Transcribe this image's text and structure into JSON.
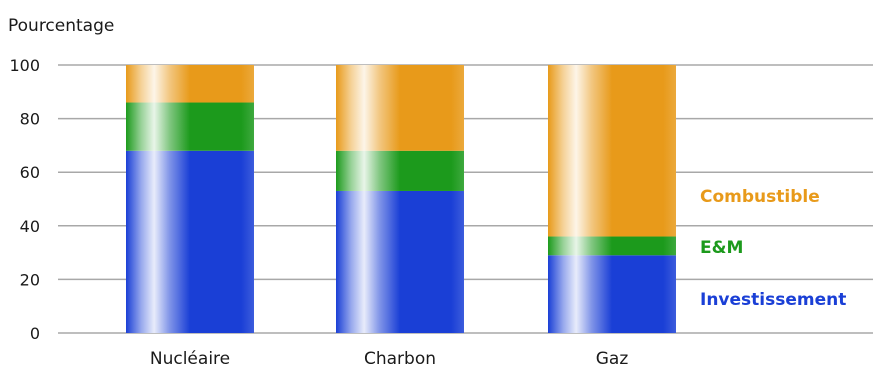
{
  "chart_data": {
    "type": "bar",
    "stacked": true,
    "title": "",
    "ylabel": "Pourcentage",
    "xlabel": "",
    "ylim": [
      0,
      100
    ],
    "yticks": [
      "0",
      "20",
      "40",
      "60",
      "80",
      "100"
    ],
    "categories": [
      "Nucléaire",
      "Charbon",
      "Gaz"
    ],
    "series": [
      {
        "name": "Investissement",
        "color": "#1a3fd6",
        "values": [
          68,
          53,
          29
        ]
      },
      {
        "name": "E&M",
        "color": "#1c9a1c",
        "values": [
          18,
          15,
          7
        ]
      },
      {
        "name": "Combustible",
        "color": "#e89a1a",
        "values": [
          14,
          32,
          64
        ]
      }
    ],
    "grid": true,
    "legend_position": "right, inline beside last bar"
  }
}
